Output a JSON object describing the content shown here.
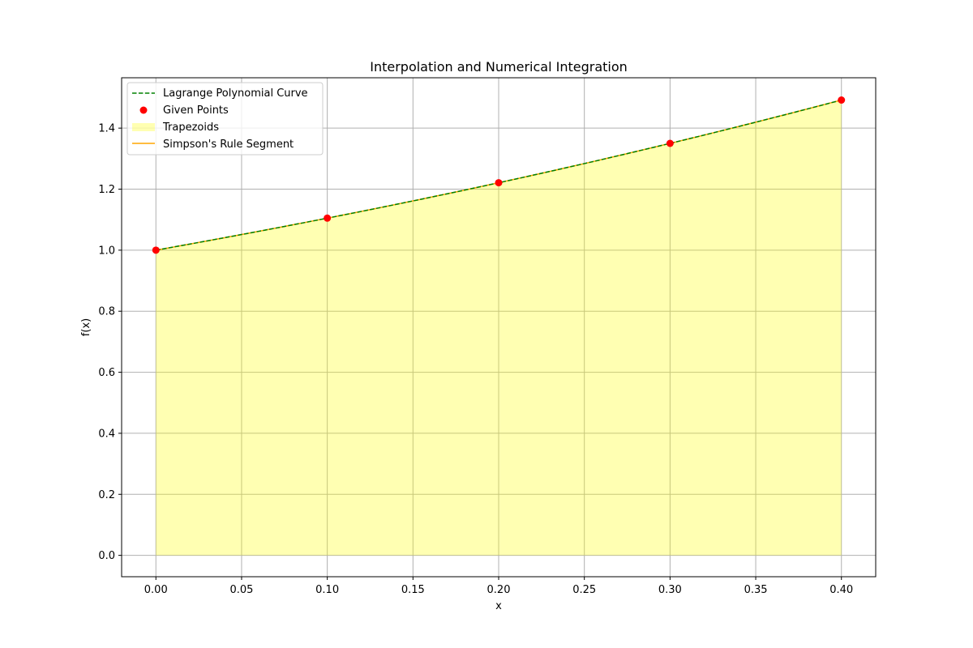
{
  "chart_data": {
    "type": "line",
    "title": "Interpolation and Numerical Integration",
    "xlabel": "x",
    "ylabel": "f(x)",
    "xlim": [
      -0.02,
      0.42
    ],
    "ylim": [
      -0.07,
      1.565
    ],
    "x_ticks": [
      0.0,
      0.05,
      0.1,
      0.15,
      0.2,
      0.25,
      0.3,
      0.35,
      0.4
    ],
    "x_tick_labels": [
      "0.00",
      "0.05",
      "0.10",
      "0.15",
      "0.20",
      "0.25",
      "0.30",
      "0.35",
      "0.40"
    ],
    "y_ticks": [
      0.0,
      0.2,
      0.4,
      0.6,
      0.8,
      1.0,
      1.2,
      1.4
    ],
    "y_tick_labels": [
      "0.0",
      "0.2",
      "0.4",
      "0.6",
      "0.8",
      "1.0",
      "1.2",
      "1.4"
    ],
    "grid": true,
    "legend_position": "upper-left",
    "points": {
      "x": [
        0.0,
        0.1,
        0.2,
        0.3,
        0.4
      ],
      "y": [
        1.0,
        1.105,
        1.221,
        1.35,
        1.492
      ]
    },
    "series": [
      {
        "name": "Lagrange Polynomial Curve",
        "kind": "line",
        "style": "dashed",
        "color": "#008000"
      },
      {
        "name": "Given Points",
        "kind": "scatter",
        "color": "#ff0000"
      },
      {
        "name": "Trapezoids",
        "kind": "area",
        "color": "#ffff00",
        "opacity": 0.3
      },
      {
        "name": "Simpson's Rule Segment",
        "kind": "line",
        "style": "solid",
        "color": "#ffa500"
      }
    ]
  }
}
